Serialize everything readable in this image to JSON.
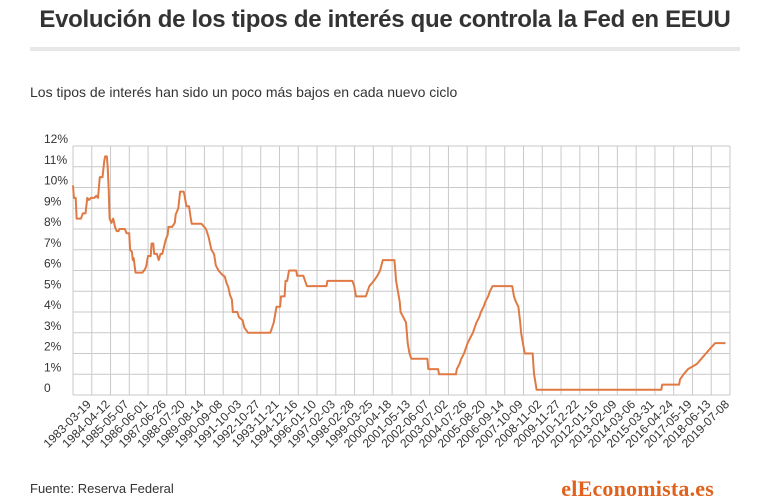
{
  "title": "Evolución de los tipos de interés que controla la Fed en EEUU",
  "subtitle": "Los tipos de interés han sido un poco más bajos en cada nuevo ciclo",
  "source": "Fuente: Reserva Federal",
  "brand": "elEconomista.es",
  "colors": {
    "line": "#e07a45",
    "grid": "#c9c9c9",
    "brand": "#e0621c"
  },
  "chart_data": {
    "type": "line",
    "title": "Evolución de los tipos de interés que controla la Fed en EEUU",
    "subtitle": "Los tipos de interés han sido un poco más bajos en cada nuevo ciclo",
    "xlabel": "",
    "ylabel": "",
    "ylim": [
      0,
      12
    ],
    "xlim": [
      1983.0,
      2019.8
    ],
    "grid": true,
    "y_ticks": [
      0,
      1,
      2,
      3,
      4,
      5,
      6,
      7,
      8,
      9,
      10,
      11,
      12
    ],
    "y_tick_labels": [
      "0",
      "1%",
      "2%",
      "3%",
      "4%",
      "5%",
      "6%",
      "7%",
      "8%",
      "9%",
      "10%",
      "11%",
      "12%"
    ],
    "x_tick_labels": [
      "1983-03-19",
      "1984-04-12",
      "1985-05-07",
      "1986-06-01",
      "1987-06-26",
      "1988-07-20",
      "1989-08-14",
      "1990-09-08",
      "1991-10-03",
      "1992-10-27",
      "1993-11-21",
      "1994-12-16",
      "1996-01-10",
      "1997-02-03",
      "1998-02-28",
      "1999-03-25",
      "2000-04-18",
      "2001-05-13",
      "2002-06-07",
      "2003-07-02",
      "2004-07-26",
      "2005-08-20",
      "2006-09-14",
      "2007-10-09",
      "2008-11-02",
      "2009-11-27",
      "2010-12-22",
      "2012-01-16",
      "2013-02-09",
      "2014-03-06",
      "2015-03-31",
      "2016-04-24",
      "2017-05-19",
      "2018-06-13",
      "2019-07-08"
    ],
    "series": [
      {
        "name": "",
        "points": [
          [
            1983.0,
            10.1
          ],
          [
            1983.05,
            9.5
          ],
          [
            1983.15,
            9.5
          ],
          [
            1983.2,
            8.5
          ],
          [
            1983.45,
            8.5
          ],
          [
            1983.55,
            8.75
          ],
          [
            1983.7,
            8.75
          ],
          [
            1983.8,
            9.5
          ],
          [
            1983.9,
            9.4
          ],
          [
            1984.0,
            9.5
          ],
          [
            1984.2,
            9.5
          ],
          [
            1984.3,
            9.6
          ],
          [
            1984.4,
            9.5
          ],
          [
            1984.5,
            10.5
          ],
          [
            1984.65,
            10.5
          ],
          [
            1984.75,
            11.25
          ],
          [
            1984.8,
            11.5
          ],
          [
            1984.9,
            11.5
          ],
          [
            1984.95,
            10.9
          ],
          [
            1985.0,
            9.9
          ],
          [
            1985.05,
            8.5
          ],
          [
            1985.15,
            8.3
          ],
          [
            1985.25,
            8.5
          ],
          [
            1985.35,
            8.1
          ],
          [
            1985.45,
            7.9
          ],
          [
            1985.55,
            7.9
          ],
          [
            1985.6,
            8.0
          ],
          [
            1985.9,
            8.0
          ],
          [
            1986.0,
            7.8
          ],
          [
            1986.15,
            7.8
          ],
          [
            1986.2,
            7.0
          ],
          [
            1986.3,
            6.9
          ],
          [
            1986.35,
            6.5
          ],
          [
            1986.4,
            6.6
          ],
          [
            1986.5,
            5.9
          ],
          [
            1986.9,
            5.9
          ],
          [
            1986.95,
            6.0
          ],
          [
            1987.0,
            6.0
          ],
          [
            1987.1,
            6.2
          ],
          [
            1987.2,
            6.7
          ],
          [
            1987.35,
            6.7
          ],
          [
            1987.4,
            7.3
          ],
          [
            1987.5,
            7.3
          ],
          [
            1987.55,
            6.8
          ],
          [
            1987.7,
            6.8
          ],
          [
            1987.8,
            6.5
          ],
          [
            1987.9,
            6.8
          ],
          [
            1988.0,
            6.8
          ],
          [
            1988.2,
            7.5
          ],
          [
            1988.3,
            7.7
          ],
          [
            1988.35,
            8.1
          ],
          [
            1988.55,
            8.1
          ],
          [
            1988.7,
            8.3
          ],
          [
            1988.75,
            8.7
          ],
          [
            1988.9,
            9.0
          ],
          [
            1989.0,
            9.8
          ],
          [
            1989.2,
            9.8
          ],
          [
            1989.25,
            9.6
          ],
          [
            1989.35,
            9.1
          ],
          [
            1989.5,
            9.1
          ],
          [
            1989.6,
            8.5
          ],
          [
            1989.65,
            8.25
          ],
          [
            1989.8,
            8.25
          ],
          [
            1990.2,
            8.25
          ],
          [
            1990.45,
            8.0
          ],
          [
            1990.6,
            7.6
          ],
          [
            1990.75,
            7.0
          ],
          [
            1990.9,
            6.8
          ],
          [
            1991.0,
            6.25
          ],
          [
            1991.15,
            6.0
          ],
          [
            1991.35,
            5.8
          ],
          [
            1991.5,
            5.7
          ],
          [
            1991.6,
            5.4
          ],
          [
            1991.7,
            5.2
          ],
          [
            1991.8,
            4.8
          ],
          [
            1991.9,
            4.6
          ],
          [
            1991.95,
            4.0
          ],
          [
            1992.2,
            4.0
          ],
          [
            1992.3,
            3.75
          ],
          [
            1992.5,
            3.6
          ],
          [
            1992.6,
            3.25
          ],
          [
            1992.8,
            3.0
          ],
          [
            1994.05,
            3.0
          ],
          [
            1994.15,
            3.25
          ],
          [
            1994.25,
            3.5
          ],
          [
            1994.3,
            3.75
          ],
          [
            1994.4,
            4.25
          ],
          [
            1994.6,
            4.25
          ],
          [
            1994.65,
            4.75
          ],
          [
            1994.85,
            4.75
          ],
          [
            1994.9,
            5.5
          ],
          [
            1995.0,
            5.5
          ],
          [
            1995.1,
            6.0
          ],
          [
            1995.5,
            6.0
          ],
          [
            1995.55,
            5.75
          ],
          [
            1995.9,
            5.75
          ],
          [
            1996.0,
            5.5
          ],
          [
            1996.1,
            5.25
          ],
          [
            1997.2,
            5.25
          ],
          [
            1997.25,
            5.5
          ],
          [
            1998.65,
            5.5
          ],
          [
            1998.75,
            5.25
          ],
          [
            1998.8,
            5.0
          ],
          [
            1998.85,
            4.75
          ],
          [
            1999.4,
            4.75
          ],
          [
            1999.5,
            5.0
          ],
          [
            1999.6,
            5.25
          ],
          [
            1999.85,
            5.5
          ],
          [
            2000.05,
            5.75
          ],
          [
            2000.2,
            6.0
          ],
          [
            2000.35,
            6.5
          ],
          [
            2001.0,
            6.5
          ],
          [
            2001.05,
            6.0
          ],
          [
            2001.1,
            5.5
          ],
          [
            2001.2,
            5.0
          ],
          [
            2001.3,
            4.5
          ],
          [
            2001.35,
            4.0
          ],
          [
            2001.5,
            3.75
          ],
          [
            2001.65,
            3.5
          ],
          [
            2001.7,
            3.0
          ],
          [
            2001.75,
            2.5
          ],
          [
            2001.85,
            2.0
          ],
          [
            2001.95,
            1.75
          ],
          [
            2002.85,
            1.75
          ],
          [
            2002.9,
            1.25
          ],
          [
            2003.45,
            1.25
          ],
          [
            2003.5,
            1.0
          ],
          [
            2004.45,
            1.0
          ],
          [
            2004.5,
            1.25
          ],
          [
            2004.65,
            1.5
          ],
          [
            2004.75,
            1.75
          ],
          [
            2004.9,
            2.0
          ],
          [
            2005.0,
            2.25
          ],
          [
            2005.1,
            2.5
          ],
          [
            2005.25,
            2.75
          ],
          [
            2005.4,
            3.0
          ],
          [
            2005.5,
            3.25
          ],
          [
            2005.6,
            3.5
          ],
          [
            2005.75,
            3.75
          ],
          [
            2005.85,
            4.0
          ],
          [
            2006.0,
            4.25
          ],
          [
            2006.1,
            4.5
          ],
          [
            2006.25,
            4.75
          ],
          [
            2006.35,
            5.0
          ],
          [
            2006.5,
            5.25
          ],
          [
            2007.6,
            5.25
          ],
          [
            2007.7,
            4.75
          ],
          [
            2007.8,
            4.5
          ],
          [
            2007.95,
            4.25
          ],
          [
            2008.05,
            3.5
          ],
          [
            2008.1,
            3.0
          ],
          [
            2008.25,
            2.25
          ],
          [
            2008.3,
            2.0
          ],
          [
            2008.75,
            2.0
          ],
          [
            2008.78,
            1.5
          ],
          [
            2008.83,
            1.0
          ],
          [
            2008.97,
            0.25
          ],
          [
            2015.95,
            0.25
          ],
          [
            2016.0,
            0.5
          ],
          [
            2016.95,
            0.5
          ],
          [
            2017.0,
            0.75
          ],
          [
            2017.2,
            1.0
          ],
          [
            2017.45,
            1.25
          ],
          [
            2017.95,
            1.5
          ],
          [
            2018.2,
            1.75
          ],
          [
            2018.45,
            2.0
          ],
          [
            2018.7,
            2.25
          ],
          [
            2018.97,
            2.5
          ],
          [
            2019.55,
            2.5
          ]
        ]
      }
    ]
  }
}
